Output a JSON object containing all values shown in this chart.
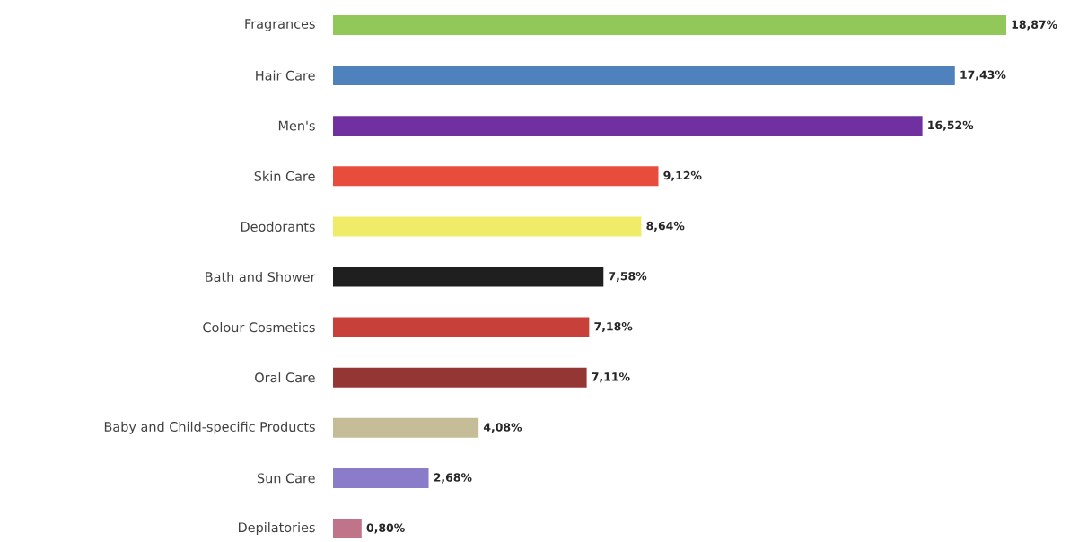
{
  "chart_data": {
    "type": "bar",
    "orientation": "horizontal",
    "categories": [
      "Fragrances",
      "Hair Care",
      "Men's",
      "Skin Care",
      "Deodorants",
      "Bath and Shower",
      "Colour Cosmetics",
      "Oral Care",
      "Baby and Child-specific Products",
      "Sun Care",
      "Depilatories"
    ],
    "values": [
      18.87,
      17.43,
      16.52,
      9.12,
      8.64,
      7.58,
      7.18,
      7.11,
      4.08,
      2.68,
      0.8
    ],
    "value_labels": [
      "18,87%",
      "17,43%",
      "16,52%",
      "9,12%",
      "8,64%",
      "7,58%",
      "7,18%",
      "7,11%",
      "4,08%",
      "2,68%",
      "0,80%"
    ],
    "colors": [
      "#92c85a",
      "#4f81bd",
      "#7030a0",
      "#e84c3d",
      "#f1eb6a",
      "#1f1f1f",
      "#c8403a",
      "#943634",
      "#c4bd97",
      "#8a7cc8",
      "#c0748a"
    ],
    "grid": false
  }
}
